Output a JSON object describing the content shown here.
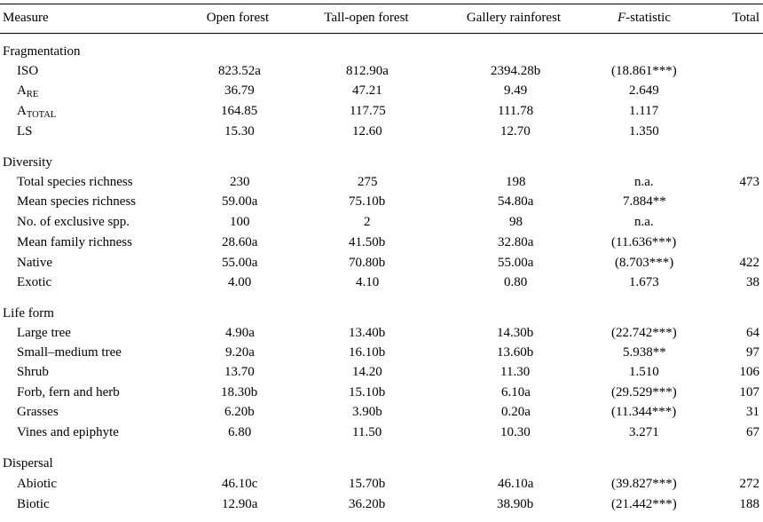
{
  "header": {
    "measure": "Measure",
    "open": "Open forest",
    "tall_open": "Tall-open forest",
    "gallery": "Gallery rainforest",
    "f_italic": "F",
    "f_rest": "-statistic",
    "total": "Total"
  },
  "sections": {
    "fragmentation": {
      "title": "Fragmentation",
      "rows": [
        {
          "label": "ISO",
          "open": "823.52a",
          "tall": "812.90a",
          "gallery": "2394.28b",
          "f": "(18.861***)",
          "total": ""
        },
        {
          "label": "A",
          "sub": "RE",
          "open": "36.79",
          "tall": "47.21",
          "gallery": "9.49",
          "f": "2.649",
          "total": ""
        },
        {
          "label": "A",
          "sub": "TOTAL",
          "open": "164.85",
          "tall": "117.75",
          "gallery": "111.78",
          "f": "1.117",
          "total": ""
        },
        {
          "label": "LS",
          "open": "15.30",
          "tall": "12.60",
          "gallery": "12.70",
          "f": "1.350",
          "total": ""
        }
      ]
    },
    "diversity": {
      "title": "Diversity",
      "rows": [
        {
          "label": "Total species richness",
          "open": "230",
          "tall": "275",
          "gallery": "198",
          "f": "n.a.",
          "total": "473"
        },
        {
          "label": "Mean species richness",
          "open": "59.00a",
          "tall": "75.10b",
          "gallery": "54.80a",
          "f": "7.884**",
          "total": ""
        },
        {
          "label": "No. of exclusive spp.",
          "open": "100",
          "tall": "2",
          "gallery": "98",
          "f": "n.a.",
          "total": ""
        },
        {
          "label": "Mean family richness",
          "open": "28.60a",
          "tall": "41.50b",
          "gallery": "32.80a",
          "f": "(11.636***)",
          "total": ""
        },
        {
          "label": "Native",
          "open": "55.00a",
          "tall": "70.80b",
          "gallery": "55.00a",
          "f": "(8.703***)",
          "total": "422"
        },
        {
          "label": "Exotic",
          "open": "4.00",
          "tall": "4.10",
          "gallery": "0.80",
          "f": "1.673",
          "total": "38"
        }
      ]
    },
    "life_form": {
      "title": "Life form",
      "rows": [
        {
          "label": "Large tree",
          "open": "4.90a",
          "tall": "13.40b",
          "gallery": "14.30b",
          "f": "(22.742***)",
          "total": "64"
        },
        {
          "label": "Small–medium tree",
          "open": "9.20a",
          "tall": "16.10b",
          "gallery": "13.60b",
          "f": "5.938**",
          "total": "97"
        },
        {
          "label": "Shrub",
          "open": "13.70",
          "tall": "14.20",
          "gallery": "11.30",
          "f": "1.510",
          "total": "106"
        },
        {
          "label": "Forb, fern and herb",
          "open": "18.30b",
          "tall": "15.10b",
          "gallery": "6.10a",
          "f": "(29.529***)",
          "total": "107"
        },
        {
          "label": "Grasses",
          "open": "6.20b",
          "tall": "3.90b",
          "gallery": "0.20a",
          "f": "(11.344***)",
          "total": "31"
        },
        {
          "label": "Vines and epiphyte",
          "open": "6.80",
          "tall": "11.50",
          "gallery": "10.30",
          "f": "3.271",
          "total": "67"
        }
      ]
    },
    "dispersal": {
      "title": "Dispersal",
      "rows": [
        {
          "label": "Abiotic",
          "open": "46.10c",
          "tall": "15.70b",
          "gallery": "46.10a",
          "f": "(39.827***)",
          "total": "272"
        },
        {
          "label": "Biotic",
          "open": "12.90a",
          "tall": "36.20b",
          "gallery": "38.90b",
          "f": "(21.442***)",
          "total": "188"
        }
      ]
    }
  }
}
